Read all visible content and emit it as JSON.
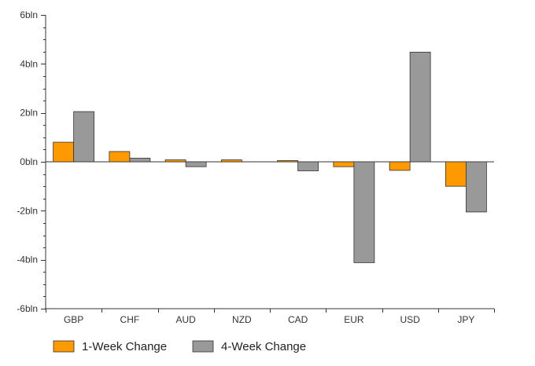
{
  "chart_data": {
    "type": "bar",
    "title": "",
    "xlabel": "",
    "ylabel": "",
    "categories": [
      "GBP",
      "CHF",
      "AUD",
      "NZD",
      "CAD",
      "EUR",
      "USD",
      "JPY"
    ],
    "series": [
      {
        "name": "1-Week Change",
        "color": "#ff9900",
        "values": [
          0.8,
          0.42,
          0.08,
          0.08,
          0.05,
          -0.2,
          -0.35,
          -1.0
        ]
      },
      {
        "name": "4-Week Change",
        "color": "#999999",
        "values": [
          2.05,
          0.15,
          -0.2,
          0.0,
          -0.37,
          -4.12,
          4.48,
          -2.05
        ]
      }
    ],
    "ylim": [
      -6,
      6
    ],
    "y_ticks": [
      6,
      4,
      2,
      0,
      -2,
      -4,
      -6
    ],
    "y_tick_labels": [
      "6bln",
      "4bln",
      "2bln",
      "0bln",
      "-2bln",
      "-4bln",
      "-6bln"
    ],
    "grid": false,
    "legend_position": "bottom-left"
  }
}
